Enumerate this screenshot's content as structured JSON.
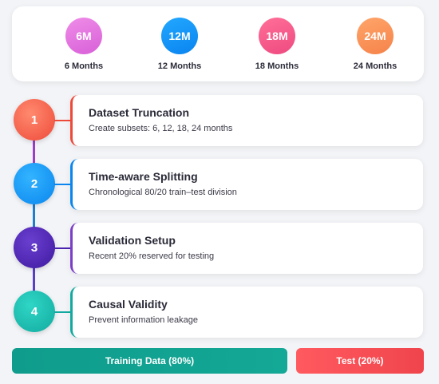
{
  "periods": [
    {
      "badge": "6M",
      "label": "6 Months",
      "color": "#e47ae2"
    },
    {
      "badge": "12M",
      "label": "12 Months",
      "color": "#1296f8"
    },
    {
      "badge": "18M",
      "label": "18 Months",
      "color": "#f35c8c"
    },
    {
      "badge": "24M",
      "label": "24 Months",
      "color": "#f8945a"
    }
  ],
  "steps": [
    {
      "number": "1",
      "title": "Dataset Truncation",
      "description": "Create subsets: 6, 12, 18, 24 months",
      "color": "#ee4a3a"
    },
    {
      "number": "2",
      "title": "Time-aware Splitting",
      "description": "Chronological 80/20 train–test division",
      "color": "#0a86ee"
    },
    {
      "number": "3",
      "title": "Validation Setup",
      "description": "Recent 20% reserved for testing",
      "color": "#4a22b0"
    },
    {
      "number": "4",
      "title": "Causal Validity",
      "description": "Prevent information leakage",
      "color": "#12aaa0"
    }
  ],
  "split": {
    "train_label": "Training Data (80%)",
    "test_label": "Test (20%)",
    "train_fraction": 0.8,
    "test_fraction": 0.2,
    "train_color": "#14a896",
    "test_color": "#f0444c"
  }
}
